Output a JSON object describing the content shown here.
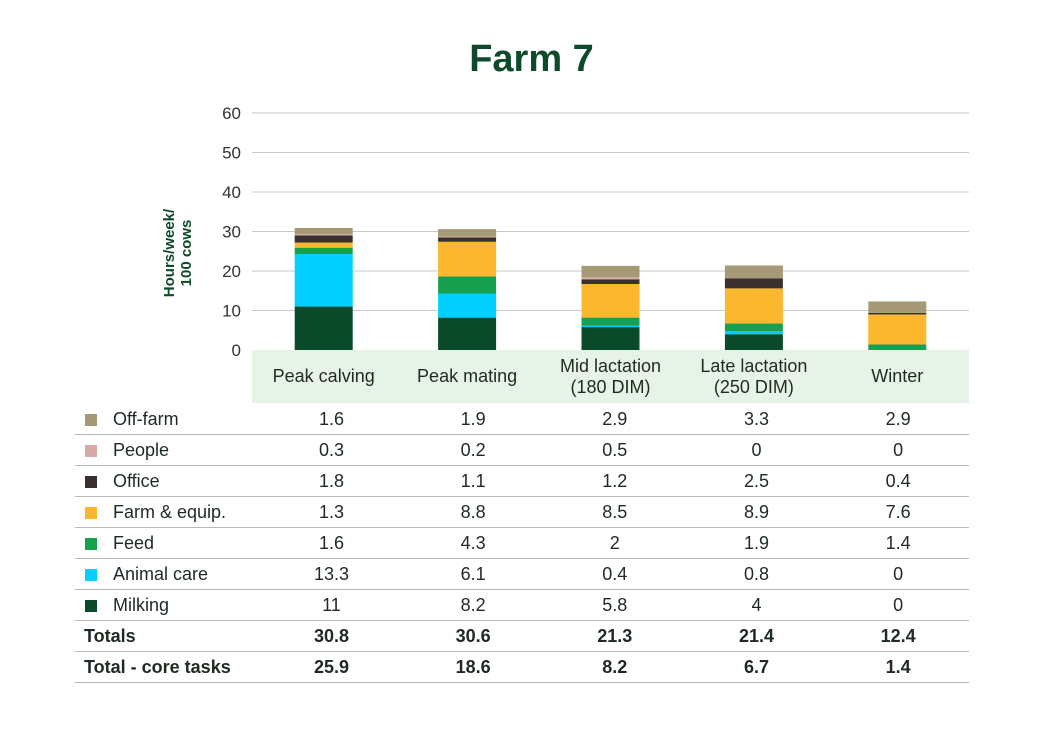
{
  "title": "Farm 7",
  "y_axis_label_line1": "Hours/week/",
  "y_axis_label_line2": "100 cows",
  "chart_data": {
    "type": "bar",
    "stacked": true,
    "title": "Farm 7",
    "ylabel": "Hours/week/ 100 cows",
    "ylim": [
      0,
      60
    ],
    "yticks": [
      0,
      10,
      20,
      30,
      40,
      50,
      60
    ],
    "grid": true,
    "categories": [
      "Peak calving",
      "Peak mating",
      "Mid lactation (180 DIM)",
      "Late lactation (250 DIM)",
      "Winter"
    ],
    "category_lines": [
      [
        "Peak calving"
      ],
      [
        "Peak mating"
      ],
      [
        "Mid lactation",
        "(180 DIM)"
      ],
      [
        "Late lactation",
        "(250 DIM)"
      ],
      [
        "Winter"
      ]
    ],
    "series": [
      {
        "name": "Milking",
        "color": "#0b4a2a",
        "values": [
          "11",
          "8.2",
          "5.8",
          "4",
          "0"
        ]
      },
      {
        "name": "Animal care",
        "color": "#00cfff",
        "values": [
          "13.3",
          "6.1",
          "0.4",
          "0.8",
          "0"
        ]
      },
      {
        "name": "Feed",
        "color": "#17a04f",
        "values": [
          "1.6",
          "4.3",
          "2",
          "1.9",
          "1.4"
        ]
      },
      {
        "name": "Farm & equip.",
        "color": "#fbb72d",
        "values": [
          "1.3",
          "8.8",
          "8.5",
          "8.9",
          "7.6"
        ]
      },
      {
        "name": "Office",
        "color": "#3a3030",
        "values": [
          "1.8",
          "1.1",
          "1.2",
          "2.5",
          "0.4"
        ]
      },
      {
        "name": "People",
        "color": "#d8aaa4",
        "values": [
          "0.3",
          "0.2",
          "0.5",
          "0",
          "0"
        ]
      },
      {
        "name": "Off-farm",
        "color": "#a69a76",
        "values": [
          "1.6",
          "1.9",
          "2.9",
          "3.3",
          "2.9"
        ]
      }
    ],
    "totals": [
      {
        "name": "Totals",
        "values": [
          "30.8",
          "30.6",
          "21.3",
          "21.4",
          "12.4"
        ]
      },
      {
        "name": "Total - core tasks",
        "values": [
          "25.9",
          "18.6",
          "8.2",
          "6.7",
          "1.4"
        ]
      }
    ]
  }
}
